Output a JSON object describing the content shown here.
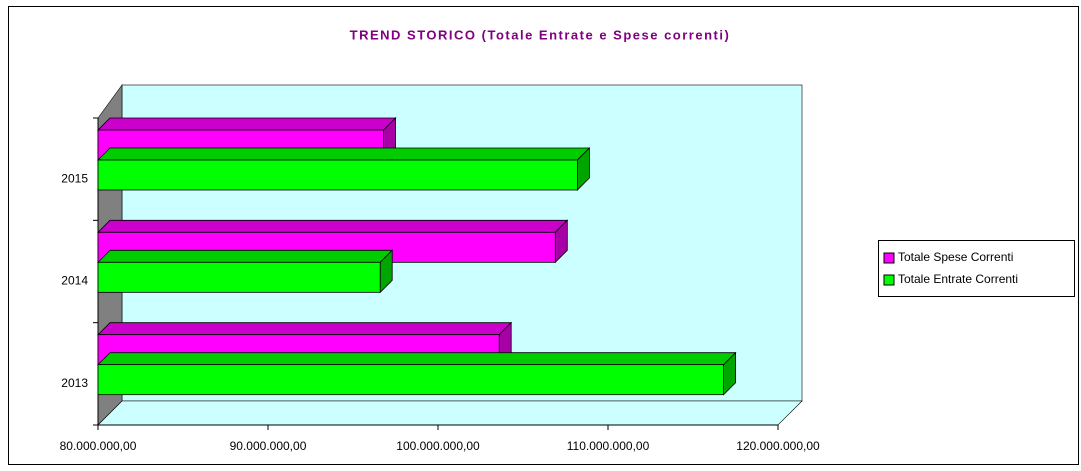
{
  "chart_data": {
    "type": "bar",
    "orientation": "horizontal",
    "title": "TREND STORICO (Totale Entrate e Spese correnti)",
    "categories": [
      "2013",
      "2014",
      "2015"
    ],
    "series": [
      {
        "name": "Totale Spese Correnti",
        "color": "#ff00ff",
        "values": [
          103600000,
          106900000,
          96800000
        ]
      },
      {
        "name": "Totale Entrate Correnti",
        "color": "#00ff00",
        "values": [
          116800000,
          96600000,
          108200000
        ]
      }
    ],
    "xlim": [
      80000000,
      120000000
    ],
    "xticks": [
      {
        "value": 80000000,
        "label": "80.000.000,00"
      },
      {
        "value": 90000000,
        "label": "90.000.000,00"
      },
      {
        "value": 100000000,
        "label": "100.000.000,00"
      },
      {
        "value": 110000000,
        "label": "110.000.000,00"
      },
      {
        "value": 120000000,
        "label": "120.000.000,00"
      }
    ],
    "legend": "right"
  }
}
